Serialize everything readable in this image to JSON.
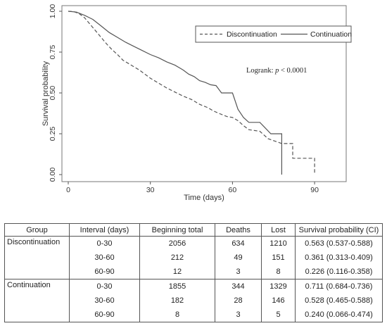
{
  "chart_data": {
    "type": "line",
    "xlabel": "Time (days)",
    "ylabel": "Survival probability",
    "xlim": [
      0,
      100
    ],
    "ylim": [
      0,
      1
    ],
    "xticks": [
      0,
      30,
      60,
      90
    ],
    "yticks": [
      "0.00",
      "0.25",
      "0.50",
      "0.75",
      "1.00"
    ],
    "grid": false,
    "legend_position": "top-right",
    "annotation": {
      "prefix": "Logrank: ",
      "italic": "p",
      "suffix": " < 0.0001"
    },
    "series": [
      {
        "name": "Discontinuation",
        "style": "dashed",
        "color": "#555555",
        "points": [
          [
            0,
            1.0
          ],
          [
            2,
            0.998
          ],
          [
            4,
            0.985
          ],
          [
            6,
            0.96
          ],
          [
            8,
            0.92
          ],
          [
            10,
            0.88
          ],
          [
            12,
            0.84
          ],
          [
            14,
            0.8
          ],
          [
            16,
            0.765
          ],
          [
            18,
            0.735
          ],
          [
            20,
            0.7
          ],
          [
            22,
            0.68
          ],
          [
            24,
            0.66
          ],
          [
            26,
            0.64
          ],
          [
            28,
            0.615
          ],
          [
            30,
            0.59
          ],
          [
            33,
            0.56
          ],
          [
            36,
            0.53
          ],
          [
            39,
            0.505
          ],
          [
            42,
            0.48
          ],
          [
            45,
            0.46
          ],
          [
            48,
            0.43
          ],
          [
            51,
            0.41
          ],
          [
            53,
            0.39
          ],
          [
            55,
            0.375
          ],
          [
            58,
            0.355
          ],
          [
            60,
            0.35
          ],
          [
            62,
            0.33
          ],
          [
            64,
            0.3
          ],
          [
            66,
            0.275
          ],
          [
            70,
            0.265
          ],
          [
            73,
            0.22
          ],
          [
            78,
            0.19
          ],
          [
            82,
            0.19
          ],
          [
            82,
            0.1
          ],
          [
            86,
            0.1
          ],
          [
            90,
            0.1
          ],
          [
            90,
            0.0
          ]
        ]
      },
      {
        "name": "Continuation",
        "style": "solid",
        "color": "#555555",
        "points": [
          [
            0,
            1.0
          ],
          [
            3,
            0.995
          ],
          [
            6,
            0.975
          ],
          [
            9,
            0.95
          ],
          [
            12,
            0.91
          ],
          [
            15,
            0.87
          ],
          [
            18,
            0.84
          ],
          [
            21,
            0.81
          ],
          [
            24,
            0.785
          ],
          [
            27,
            0.76
          ],
          [
            30,
            0.735
          ],
          [
            33,
            0.715
          ],
          [
            36,
            0.69
          ],
          [
            39,
            0.67
          ],
          [
            42,
            0.64
          ],
          [
            44,
            0.615
          ],
          [
            46,
            0.6
          ],
          [
            48,
            0.575
          ],
          [
            50,
            0.565
          ],
          [
            52,
            0.55
          ],
          [
            54,
            0.545
          ],
          [
            56,
            0.5
          ],
          [
            58,
            0.5
          ],
          [
            60,
            0.5
          ],
          [
            62,
            0.4
          ],
          [
            64,
            0.35
          ],
          [
            66,
            0.32
          ],
          [
            70,
            0.32
          ],
          [
            74,
            0.25
          ],
          [
            78,
            0.25
          ],
          [
            78,
            0.0
          ]
        ]
      }
    ]
  },
  "table": {
    "headers": [
      "Group",
      "Interval (days)",
      "Beginning total",
      "Deaths",
      "Lost",
      "Survival probability (CI)"
    ],
    "groups": [
      {
        "name": "Discontinuation",
        "rows": [
          [
            "0-30",
            "2056",
            "634",
            "1210",
            "0.563 (0.537-0.588)"
          ],
          [
            "30-60",
            "212",
            "49",
            "151",
            "0.361 (0.313-0.409)"
          ],
          [
            "60-90",
            "12",
            "3",
            "8",
            "0.226 (0.116-0.358)"
          ]
        ]
      },
      {
        "name": "Continuation",
        "rows": [
          [
            "0-30",
            "1855",
            "344",
            "1329",
            "0.711 (0.684-0.736)"
          ],
          [
            "30-60",
            "182",
            "28",
            "146",
            "0.528 (0.465-0.588)"
          ],
          [
            "60-90",
            "8",
            "3",
            "5",
            "0.240 (0.066-0.474)"
          ]
        ]
      }
    ]
  }
}
